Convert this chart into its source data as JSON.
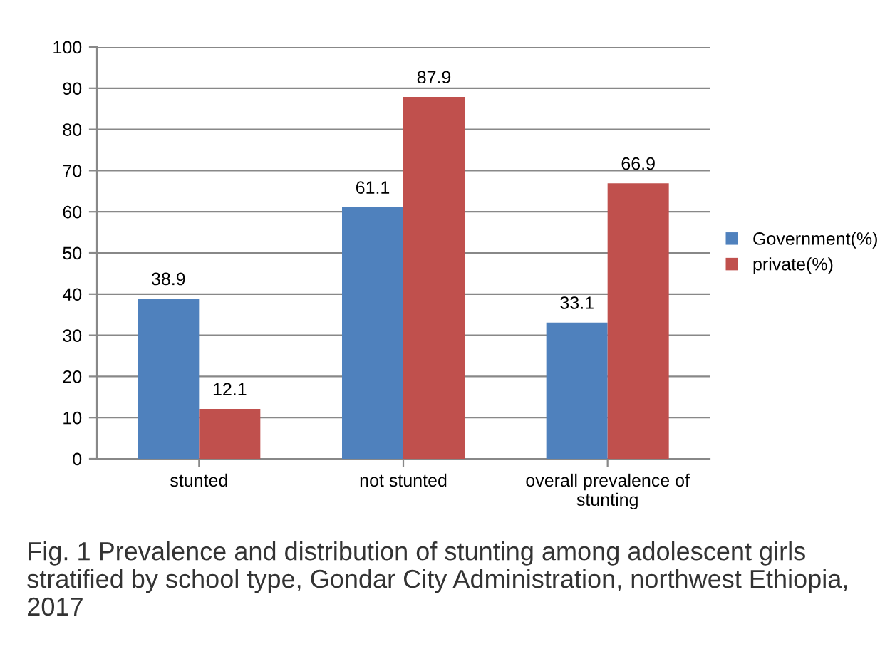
{
  "chart_data": {
    "type": "bar",
    "categories": [
      "stunted",
      "not stunted",
      "overall prevalence of\nstunting"
    ],
    "series": [
      {
        "name": "Government(%)",
        "color": "#4f81bd",
        "values": [
          38.9,
          61.1,
          33.1
        ]
      },
      {
        "name": "private(%)",
        "color": "#c0504d",
        "values": [
          12.1,
          87.9,
          66.9
        ]
      }
    ],
    "ylim": [
      0,
      100
    ],
    "yticks": [
      0,
      10,
      20,
      30,
      40,
      50,
      60,
      70,
      80,
      90,
      100
    ],
    "grid": "y",
    "legend": "right",
    "data_labels": true,
    "annotations": [
      "Fig. 1 Prevalence and distribution of stunting among adolescent girls stratified by school type, Gondar City Administration, northwest Ethiopia, 2017"
    ]
  }
}
